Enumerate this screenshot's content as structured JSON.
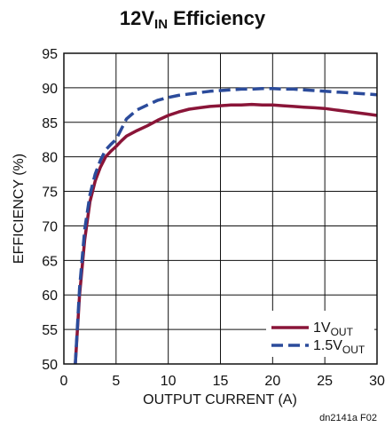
{
  "chart_data": {
    "type": "line",
    "title": {
      "main": "12V",
      "sub": "IN",
      "rest": " Efficiency"
    },
    "xlabel": "OUTPUT CURRENT (A)",
    "ylabel": "EFFICIENCY (%)",
    "xlim": [
      0,
      30
    ],
    "ylim": [
      50,
      95
    ],
    "xticks": [
      0,
      5,
      10,
      15,
      20,
      25,
      30
    ],
    "yticks": [
      50,
      55,
      60,
      65,
      70,
      75,
      80,
      85,
      90,
      95
    ],
    "grid": true,
    "legend_position": "bottom-right",
    "figure_id": "dn2141a F02",
    "series": [
      {
        "name": "1V",
        "name_sub": "OUT",
        "color": "#8a1538",
        "style": "solid",
        "x": [
          1.1,
          1.5,
          2,
          2.5,
          3,
          3.5,
          4,
          4.5,
          5,
          5.5,
          6,
          7,
          8,
          9,
          10,
          11,
          12,
          13,
          14,
          15,
          16,
          17,
          18,
          19,
          20,
          21,
          22,
          23,
          24,
          25,
          26,
          27,
          28,
          29,
          30
        ],
        "y": [
          50,
          60,
          68,
          73.5,
          76.5,
          78.5,
          80,
          80.8,
          81.5,
          82.3,
          83,
          83.8,
          84.5,
          85.3,
          86,
          86.5,
          86.9,
          87.1,
          87.3,
          87.4,
          87.5,
          87.5,
          87.6,
          87.5,
          87.5,
          87.4,
          87.3,
          87.2,
          87.1,
          87,
          86.8,
          86.6,
          86.4,
          86.2,
          86
        ]
      },
      {
        "name": "1.5V",
        "name_sub": "OUT",
        "color": "#2b4b9b",
        "style": "dashed",
        "x": [
          1.1,
          1.5,
          2,
          2.5,
          3,
          3.5,
          4,
          4.5,
          5,
          5.5,
          6,
          7,
          8,
          9,
          10,
          11,
          12,
          13,
          14,
          15,
          16,
          17,
          18,
          19,
          20,
          21,
          22,
          23,
          24,
          25,
          26,
          27,
          28,
          29,
          30
        ],
        "y": [
          50,
          61,
          69.5,
          74.5,
          77.5,
          79.5,
          81,
          81.8,
          82.5,
          84,
          85.5,
          86.8,
          87.5,
          88.2,
          88.6,
          88.9,
          89.1,
          89.3,
          89.5,
          89.6,
          89.7,
          89.8,
          89.8,
          89.9,
          89.9,
          89.8,
          89.8,
          89.7,
          89.6,
          89.5,
          89.4,
          89.3,
          89.2,
          89.1,
          89
        ]
      }
    ]
  }
}
